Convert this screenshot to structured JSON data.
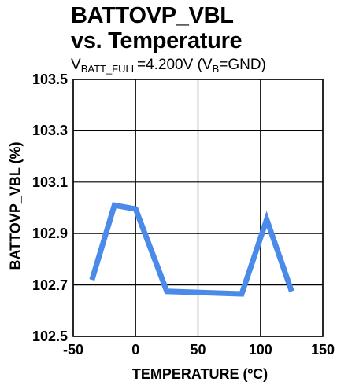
{
  "title_line1": "BATTOVP_VBL",
  "title_line2": "vs. Temperature",
  "subtitle": {
    "v": "V",
    "sub1": "BATT_FULL",
    "mid": "=4.200V (V",
    "sub2": "B",
    "end": "=GND)"
  },
  "chart_data": {
    "type": "line",
    "title": "BATTOVP_VBL vs. Temperature",
    "subtitle": "VBATT_FULL=4.200V (VB=GND)",
    "xlabel": "TEMPERATURE (ºC)",
    "ylabel": "BATTOVP_VBL (%)",
    "xlim": [
      -50,
      150
    ],
    "ylim": [
      102.5,
      103.5
    ],
    "xticks": [
      -50,
      0,
      50,
      100,
      150
    ],
    "yticks": [
      102.5,
      102.7,
      102.9,
      103.1,
      103.3,
      103.5
    ],
    "xtick_labels": [
      "-50",
      "0",
      "50",
      "100",
      "150"
    ],
    "ytick_labels": [
      "102.5",
      "102.7",
      "102.9",
      "103.1",
      "103.3",
      "103.5"
    ],
    "grid": true,
    "series": [
      {
        "color": "#4a8ae8",
        "x": [
          -35,
          -17,
          0,
          25,
          85,
          105,
          125
        ],
        "y": [
          102.72,
          103.01,
          102.995,
          102.675,
          102.665,
          102.955,
          102.675
        ]
      }
    ]
  }
}
